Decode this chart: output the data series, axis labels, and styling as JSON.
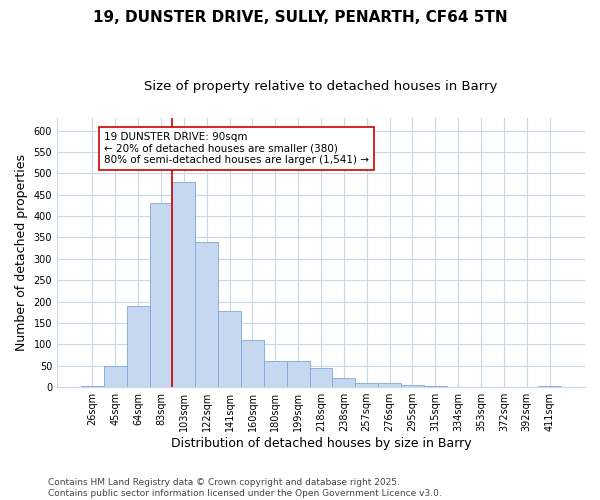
{
  "title1": "19, DUNSTER DRIVE, SULLY, PENARTH, CF64 5TN",
  "title2": "Size of property relative to detached houses in Barry",
  "xlabel": "Distribution of detached houses by size in Barry",
  "ylabel": "Number of detached properties",
  "categories": [
    "26sqm",
    "45sqm",
    "64sqm",
    "83sqm",
    "103sqm",
    "122sqm",
    "141sqm",
    "160sqm",
    "180sqm",
    "199sqm",
    "218sqm",
    "238sqm",
    "257sqm",
    "276sqm",
    "295sqm",
    "315sqm",
    "334sqm",
    "353sqm",
    "372sqm",
    "392sqm",
    "411sqm"
  ],
  "values": [
    3,
    50,
    190,
    430,
    480,
    340,
    178,
    110,
    60,
    60,
    45,
    22,
    10,
    10,
    4,
    2,
    1,
    1,
    1,
    1,
    3
  ],
  "bar_color": "#c5d8ef",
  "bar_edge_color": "#7da7d9",
  "grid_color": "#c8d8e8",
  "background_color": "#ffffff",
  "plot_bg_color": "#ffffff",
  "vline_color": "#cc0000",
  "vline_x": 3.5,
  "annotation_line1": "19 DUNSTER DRIVE: 90sqm",
  "annotation_line2": "← 20% of detached houses are smaller (380)",
  "annotation_line3": "80% of semi-detached houses are larger (1,541) →",
  "annotation_box_color": "#ffffff",
  "annotation_box_edge_color": "#cc0000",
  "ylim": [
    0,
    630
  ],
  "yticks": [
    0,
    50,
    100,
    150,
    200,
    250,
    300,
    350,
    400,
    450,
    500,
    550,
    600
  ],
  "footer": "Contains HM Land Registry data © Crown copyright and database right 2025.\nContains public sector information licensed under the Open Government Licence v3.0.",
  "title_fontsize": 11,
  "subtitle_fontsize": 9.5,
  "tick_fontsize": 7,
  "label_fontsize": 9,
  "footer_fontsize": 6.5,
  "annot_fontsize": 7.5
}
